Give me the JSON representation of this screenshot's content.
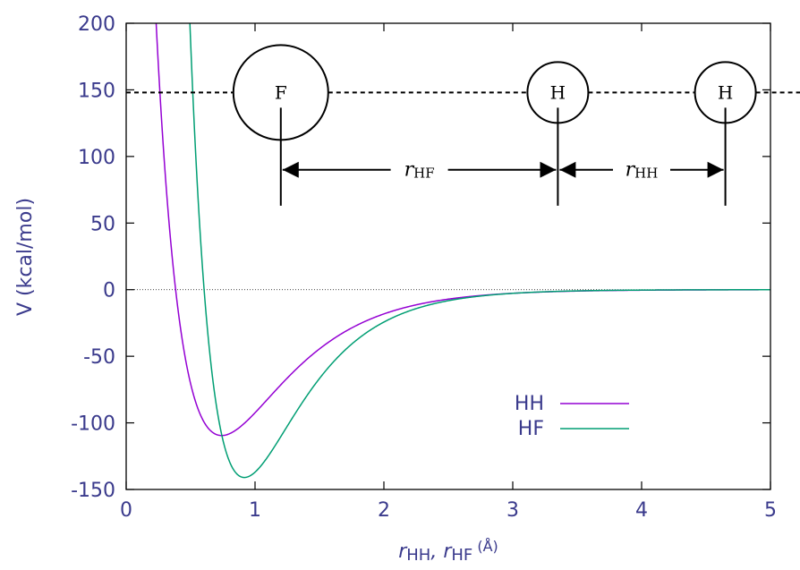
{
  "chart_data": {
    "type": "line",
    "xlabel": {
      "main": "r",
      "sub1": "HH",
      "sep": ", r",
      "sub2": "HF",
      "unit": " (Å)"
    },
    "ylabel": "V (kcal/mol)",
    "xlim": [
      0,
      5
    ],
    "ylim": [
      -150,
      200
    ],
    "x_ticks": [
      0,
      1,
      2,
      3,
      4,
      5
    ],
    "y_ticks": [
      -150,
      -100,
      -50,
      0,
      50,
      100,
      150,
      200
    ],
    "zero_line": true,
    "series": [
      {
        "name": "HH",
        "color": "#9400d3",
        "De": 109.5,
        "re": 0.741,
        "a": 1.94,
        "x": [
          0.2,
          0.3,
          0.4,
          0.5,
          0.6,
          0.741,
          0.9,
          1.0,
          1.2,
          1.5,
          2.0,
          2.5,
          3.0,
          3.5,
          4.0,
          5.0
        ],
        "y": [
          196,
          94,
          27,
          -25,
          -80,
          -109.5,
          -98,
          -86,
          -62,
          -37,
          -16,
          -6,
          -2.5,
          -1,
          -0.3,
          0
        ]
      },
      {
        "name": "HF",
        "color": "#009e73",
        "De": 141,
        "re": 0.917,
        "a": 2.22,
        "x": [
          0.45,
          0.5,
          0.6,
          0.7,
          0.8,
          0.917,
          1.0,
          1.2,
          1.5,
          2.0,
          2.5,
          3.0,
          3.5,
          4.0,
          5.0
        ],
        "y": [
          250,
          190,
          0,
          -75,
          -122,
          -141,
          -135,
          -104,
          -56,
          -18,
          -5,
          -1.5,
          -0.5,
          -0.1,
          0
        ]
      }
    ],
    "legend": {
      "position": "bottom-right",
      "entries": [
        "HH",
        "HF"
      ]
    }
  },
  "diagram": {
    "atoms": [
      {
        "label": "F",
        "x": 1.2
      },
      {
        "label": "H",
        "x": 3.35
      },
      {
        "label": "H",
        "x": 4.65
      }
    ],
    "dashed_line_y": 148,
    "distances": [
      {
        "main": "r",
        "sub": "HF"
      },
      {
        "main": "r",
        "sub": "HH"
      }
    ]
  }
}
